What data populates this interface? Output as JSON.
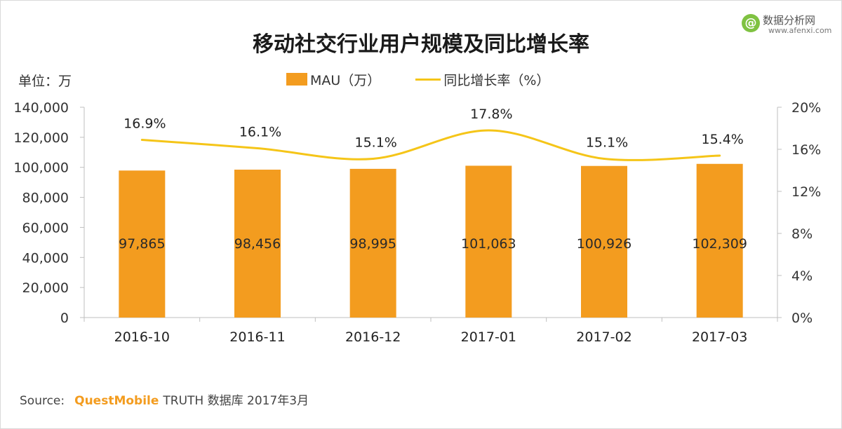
{
  "title": "移动社交行业用户规模及同比增长率",
  "unit_label": "单位：万",
  "legend": {
    "bar_label": "MAU（万）",
    "line_label": "同比增长率（%）"
  },
  "logo": {
    "icon_text": "@",
    "name": "数据分析网",
    "url": "www.afenxi.com"
  },
  "source": {
    "prefix": "Source:",
    "brand": "QuestMobile",
    "rest": "TRUTH 数据库 2017年3月"
  },
  "colors": {
    "bar": "#F39C1F",
    "line": "#F5C518",
    "axis": "#bfbfbf",
    "text": "#333333"
  },
  "chart_data": {
    "type": "bar",
    "categories": [
      "2016-10",
      "2016-11",
      "2016-12",
      "2017-01",
      "2017-02",
      "2017-03"
    ],
    "series": [
      {
        "name": "MAU（万）",
        "type": "bar",
        "axis": "left",
        "values": [
          97865,
          98456,
          98995,
          101063,
          100926,
          102309
        ],
        "labels": [
          "97,865",
          "98,456",
          "98,995",
          "101,063",
          "100,926",
          "102,309"
        ]
      },
      {
        "name": "同比增长率（%）",
        "type": "line",
        "axis": "right",
        "values": [
          16.9,
          16.1,
          15.1,
          17.8,
          15.1,
          15.4
        ],
        "labels": [
          "16.9%",
          "16.1%",
          "15.1%",
          "17.8%",
          "15.1%",
          "15.4%"
        ]
      }
    ],
    "y_left": {
      "ylim": [
        0,
        140000
      ],
      "ticks": [
        0,
        20000,
        40000,
        60000,
        80000,
        100000,
        120000,
        140000
      ],
      "tick_labels": [
        "0",
        "20,000",
        "40,000",
        "60,000",
        "80,000",
        "100,000",
        "120,000",
        "140,000"
      ]
    },
    "y_right": {
      "ylim": [
        0,
        20
      ],
      "ticks": [
        0,
        4,
        8,
        12,
        16,
        20
      ],
      "tick_labels": [
        "0%",
        "4%",
        "8%",
        "12%",
        "16%",
        "20%"
      ]
    },
    "grid": false,
    "legend_position": "top-center"
  }
}
